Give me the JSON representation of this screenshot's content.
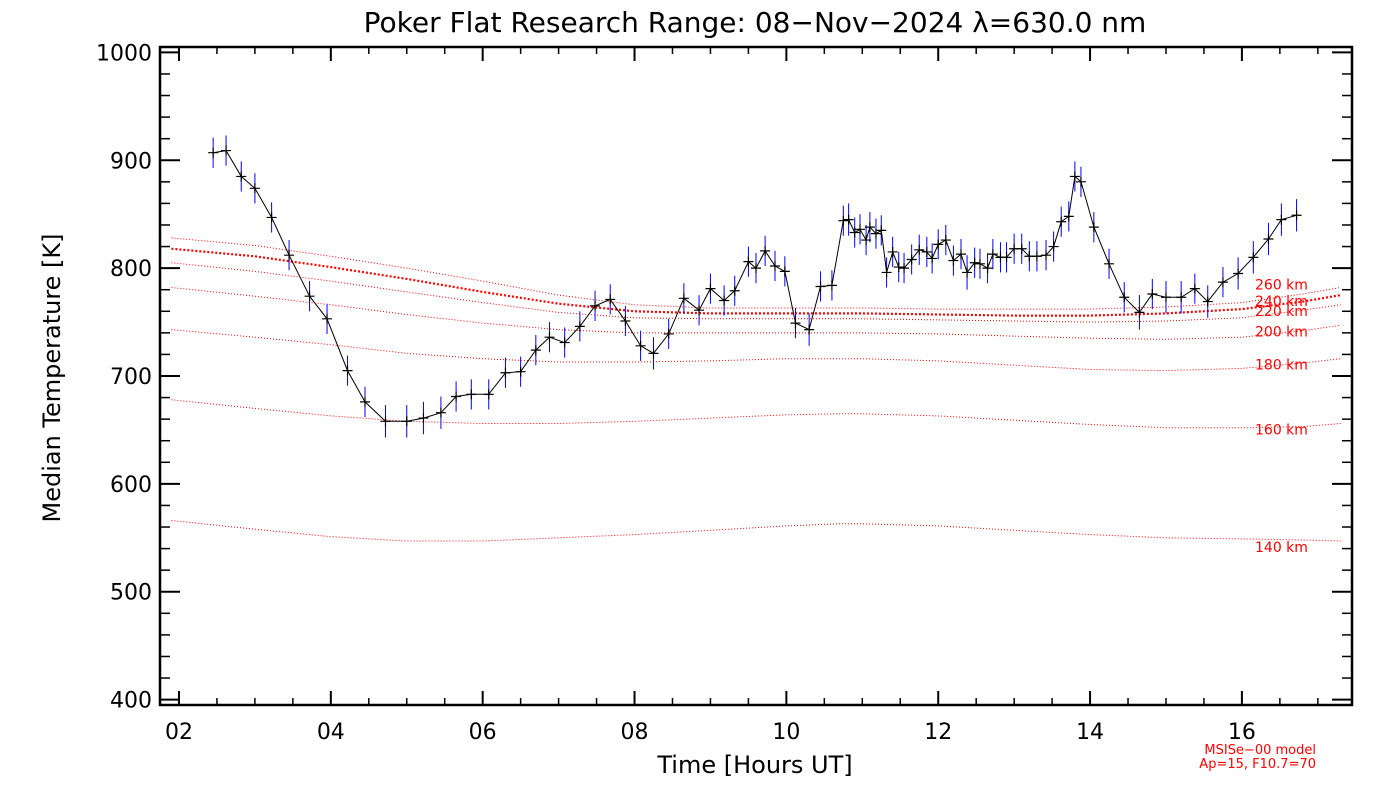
{
  "chart_data": {
    "type": "line",
    "title": "Poker Flat Research Range: 08−Nov−2024 λ=630.0 nm",
    "xlabel": "Time [Hours UT]",
    "ylabel": "Median Temperature [K]",
    "xlim": [
      1.75,
      17.45
    ],
    "ylim": [
      395,
      1005
    ],
    "x_ticks": [
      2,
      4,
      6,
      8,
      10,
      12,
      14,
      16
    ],
    "x_tick_labels": [
      "02",
      "04",
      "06",
      "08",
      "10",
      "12",
      "14",
      "16"
    ],
    "y_ticks": [
      400,
      500,
      600,
      700,
      800,
      900,
      1000
    ],
    "y_tick_labels": [
      "400",
      "500",
      "600",
      "700",
      "800",
      "900",
      "1000"
    ],
    "grid": false,
    "measured": {
      "color": "#000000",
      "error_color": "#0000ff",
      "x": [
        2.45,
        2.62,
        2.82,
        3.0,
        3.22,
        3.45,
        3.72,
        3.95,
        4.22,
        4.45,
        4.72,
        5.0,
        5.22,
        5.45,
        5.65,
        5.85,
        6.08,
        6.3,
        6.5,
        6.7,
        6.88,
        7.08,
        7.28,
        7.48,
        7.68,
        7.88,
        8.08,
        8.25,
        8.45,
        8.65,
        8.85,
        9.0,
        9.18,
        9.32,
        9.5,
        9.6,
        9.72,
        9.85,
        9.98,
        10.12,
        10.3,
        10.45,
        10.6,
        10.75,
        10.82,
        10.9,
        10.97,
        11.05,
        11.1,
        11.18,
        11.25,
        11.32,
        11.4,
        11.48,
        11.55,
        11.65,
        11.75,
        11.85,
        11.92,
        12.0,
        12.1,
        12.2,
        12.3,
        12.38,
        12.48,
        12.55,
        12.65,
        12.72,
        12.82,
        12.9,
        13.0,
        13.1,
        13.2,
        13.3,
        13.42,
        13.52,
        13.62,
        13.72,
        13.8,
        13.88,
        14.05,
        14.25,
        14.45,
        14.65,
        14.82,
        15.0,
        15.2,
        15.38,
        15.55,
        15.75,
        15.95,
        16.15,
        16.35,
        16.52,
        16.72
      ],
      "y": [
        907,
        909,
        885,
        874,
        847,
        812,
        774,
        753,
        705,
        676,
        658,
        658,
        661,
        666,
        681,
        683,
        683,
        703,
        704,
        724,
        736,
        731,
        746,
        765,
        771,
        751,
        728,
        721,
        739,
        772,
        761,
        781,
        770,
        779,
        806,
        800,
        816,
        802,
        797,
        749,
        743,
        783,
        784,
        844,
        845,
        833,
        836,
        826,
        838,
        832,
        835,
        796,
        815,
        801,
        800,
        808,
        817,
        815,
        809,
        822,
        826,
        807,
        813,
        796,
        805,
        804,
        800,
        813,
        810,
        810,
        818,
        818,
        811,
        811,
        812,
        820,
        843,
        848,
        885,
        880,
        838,
        804,
        773,
        759,
        776,
        773,
        773,
        781,
        769,
        787,
        795,
        810,
        827,
        845,
        849
      ],
      "err": [
        14,
        14,
        14,
        14,
        14,
        14,
        14,
        14,
        14,
        14,
        15,
        15,
        15,
        15,
        14,
        14,
        14,
        14,
        14,
        14,
        14,
        14,
        14,
        14,
        14,
        14,
        14,
        15,
        14,
        14,
        14,
        14,
        14,
        14,
        14,
        14,
        14,
        14,
        14,
        14,
        15,
        14,
        14,
        14,
        15,
        14,
        14,
        14,
        14,
        14,
        14,
        14,
        14,
        14,
        14,
        14,
        14,
        14,
        14,
        14,
        14,
        14,
        14,
        16,
        14,
        14,
        14,
        14,
        14,
        14,
        14,
        14,
        14,
        14,
        14,
        14,
        14,
        14,
        14,
        14,
        14,
        14,
        14,
        16,
        14,
        15,
        15,
        14,
        15,
        14,
        15,
        15,
        15,
        15,
        15
      ]
    },
    "model_series": [
      {
        "name": "140 km",
        "x": [
          1.9,
          3,
          4,
          5,
          6,
          7,
          8,
          9,
          10,
          10.7,
          11,
          12,
          13,
          14,
          15,
          16,
          16.8,
          17.3
        ],
        "y": [
          566,
          558,
          551,
          547,
          547,
          550,
          553,
          557,
          561,
          563,
          563,
          561,
          557,
          553,
          550,
          549,
          548,
          547
        ]
      },
      {
        "name": "160 km",
        "x": [
          1.9,
          3,
          4,
          5,
          6,
          7,
          8,
          9,
          10,
          10.7,
          11,
          12,
          13,
          14,
          15,
          16,
          16.8,
          17.3
        ],
        "y": [
          678,
          670,
          663,
          658,
          656,
          656,
          658,
          661,
          664,
          665,
          665,
          663,
          659,
          655,
          652,
          652,
          653,
          656
        ]
      },
      {
        "name": "180 km",
        "x": [
          1.9,
          3,
          4,
          5,
          6,
          7,
          8,
          9,
          10,
          10.7,
          11,
          12,
          13,
          14,
          15,
          16,
          16.8,
          17.3
        ],
        "y": [
          743,
          736,
          729,
          721,
          716,
          713,
          713,
          714,
          716,
          716,
          716,
          714,
          710,
          706,
          705,
          707,
          712,
          716
        ]
      },
      {
        "name": "200 km",
        "x": [
          1.9,
          3,
          4,
          5,
          6,
          7,
          8,
          9,
          10,
          10.7,
          11,
          12,
          13,
          14,
          15,
          16,
          16.8,
          17.3
        ],
        "y": [
          782,
          774,
          766,
          757,
          749,
          743,
          740,
          740,
          740,
          740,
          740,
          739,
          737,
          735,
          734,
          736,
          742,
          747
        ]
      },
      {
        "name": "220 km",
        "x": [
          1.9,
          3,
          4,
          5,
          6,
          7,
          8,
          9,
          10,
          10.7,
          11,
          12,
          13,
          14,
          15,
          16,
          16.8,
          17.3
        ],
        "y": [
          805,
          797,
          788,
          778,
          768,
          759,
          754,
          753,
          753,
          753,
          753,
          752,
          751,
          750,
          751,
          754,
          761,
          766
        ]
      },
      {
        "name": "240 km",
        "x": [
          1.9,
          3,
          4,
          5,
          6,
          7,
          8,
          9,
          10,
          10.7,
          11,
          12,
          13,
          14,
          15,
          16,
          16.8,
          17.3
        ],
        "y": [
          818,
          811,
          801,
          790,
          778,
          767,
          760,
          758,
          758,
          758,
          758,
          757,
          756,
          756,
          758,
          762,
          769,
          775
        ]
      },
      {
        "name": "260 km",
        "x": [
          1.9,
          3,
          4,
          5,
          6,
          7,
          8,
          9,
          10,
          10.7,
          11,
          12,
          13,
          14,
          15,
          16,
          16.8,
          17.3
        ],
        "y": [
          828,
          821,
          811,
          800,
          788,
          775,
          766,
          763,
          763,
          763,
          763,
          762,
          762,
          762,
          764,
          768,
          776,
          782
        ]
      }
    ],
    "model_color": "#ff0000",
    "model_note": [
      "MSISe−00 model",
      "Ap=15, F10.7=70"
    ]
  }
}
